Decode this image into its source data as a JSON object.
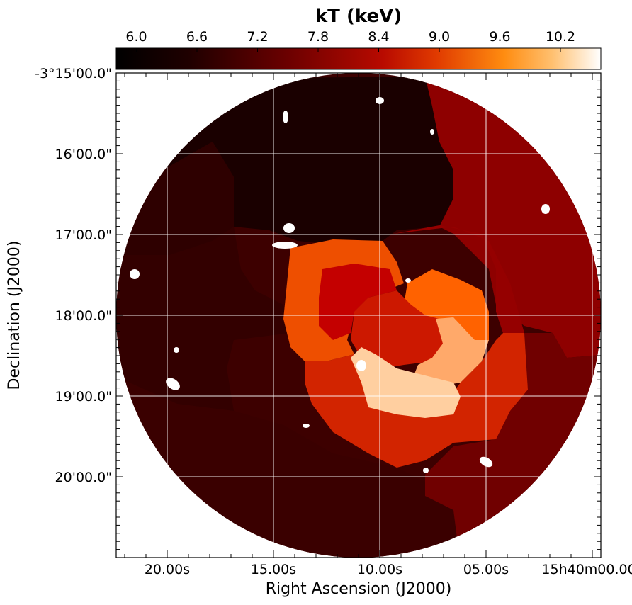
{
  "chart_data": {
    "type": "heatmap",
    "colorbar": {
      "title": "kT (keV)",
      "range": [
        5.8,
        10.6
      ],
      "ticks": [
        6.0,
        6.6,
        7.2,
        7.8,
        8.4,
        9.0,
        9.6,
        10.2
      ],
      "tick_labels": [
        "6.0",
        "6.6",
        "7.2",
        "7.8",
        "8.4",
        "9.0",
        "9.6",
        "10.2"
      ],
      "colormap": "gist_heat",
      "placement": "top"
    },
    "xaxis": {
      "label": "Right Ascension (J2000)",
      "tick_labels": [
        "20.00s",
        "15.00s",
        "10.00s",
        "05.00s",
        "15h40m00.00s"
      ],
      "tick_values_s": [
        20,
        15,
        10,
        5,
        0
      ],
      "range_s": [
        22.4,
        -0.4
      ]
    },
    "yaxis": {
      "label": "Declination (J2000)",
      "tick_labels": [
        "-3°15'00.0\"",
        "16'00.0\"",
        "17'00.0\"",
        "18'00.0\"",
        "19'00.0\"",
        "20'00.0\""
      ],
      "tick_values_arcmin": [
        0,
        1,
        2,
        3,
        4,
        5
      ],
      "range_arcmin": [
        0,
        6
      ]
    },
    "grid": true,
    "regions": [
      {
        "kT": 6.6
      },
      {
        "kT": 6.0
      },
      {
        "kT": 6.3
      },
      {
        "kT": 6.6
      },
      {
        "kT": 7.5
      },
      {
        "kT": 7.7
      },
      {
        "kT": 7.3
      },
      {
        "kT": 8.9
      },
      {
        "kT": 8.3
      },
      {
        "kT": 9.1
      },
      {
        "kT": 8.6
      },
      {
        "kT": 8.2
      },
      {
        "kT": 10.0
      },
      {
        "kT": 10.4
      }
    ]
  }
}
